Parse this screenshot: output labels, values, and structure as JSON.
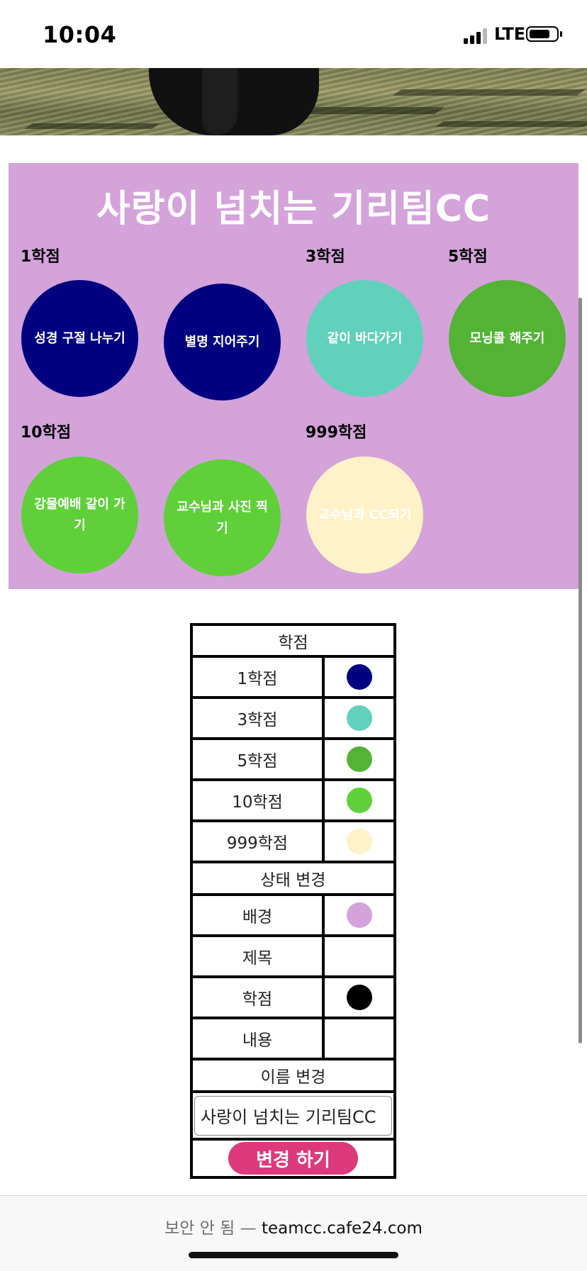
{
  "status_bar": {
    "time": "10:04",
    "network": "LTE"
  },
  "board": {
    "title": "사랑이 넘치는 기리팀CC",
    "background": "#d3a3da",
    "groups": [
      {
        "label": "1학점",
        "items": [
          {
            "text": "성경 구절 나누기",
            "color": "#000080"
          },
          {
            "text": "별명 지어주기",
            "color": "#000080"
          }
        ]
      },
      {
        "label": "3학점",
        "items": [
          {
            "text": "같이 바다가기",
            "color": "#61d1bb"
          }
        ]
      },
      {
        "label": "5학점",
        "items": [
          {
            "text": "모닝콜 해주기",
            "color": "#52b335"
          }
        ]
      },
      {
        "label": "10학점",
        "items": [
          {
            "text": "강물예배 같이 가기",
            "color": "#5fd03a"
          },
          {
            "text": "교수님과 사진 찍기",
            "color": "#5fd03a"
          }
        ]
      },
      {
        "label": "999학점",
        "items": [
          {
            "text": "교수님과 CC되기",
            "color": "#fff1c8"
          }
        ]
      }
    ]
  },
  "legend_table": {
    "header": "학점",
    "rows": [
      {
        "label": "1학점",
        "color": "#000080"
      },
      {
        "label": "3학점",
        "color": "#61d1bb"
      },
      {
        "label": "5학점",
        "color": "#52b335"
      },
      {
        "label": "10학점",
        "color": "#5fd03a"
      },
      {
        "label": "999학점",
        "color": "#fff1c8"
      }
    ],
    "state_header": "상태 변경",
    "state_rows": [
      {
        "label": "배경",
        "color": "#d3a3da"
      },
      {
        "label": "제목",
        "color": "#ffffff"
      },
      {
        "label": "학점",
        "color": "#000000"
      },
      {
        "label": "내용",
        "color": "#ffffff"
      }
    ],
    "name_header": "이름 변경",
    "name_value": "사랑이 넘치는 기리팀CC",
    "submit_label": "변경 하기"
  },
  "address_bar": {
    "insecure_label": "보안 안 됨 —",
    "domain": "teamcc.cafe24.com"
  }
}
